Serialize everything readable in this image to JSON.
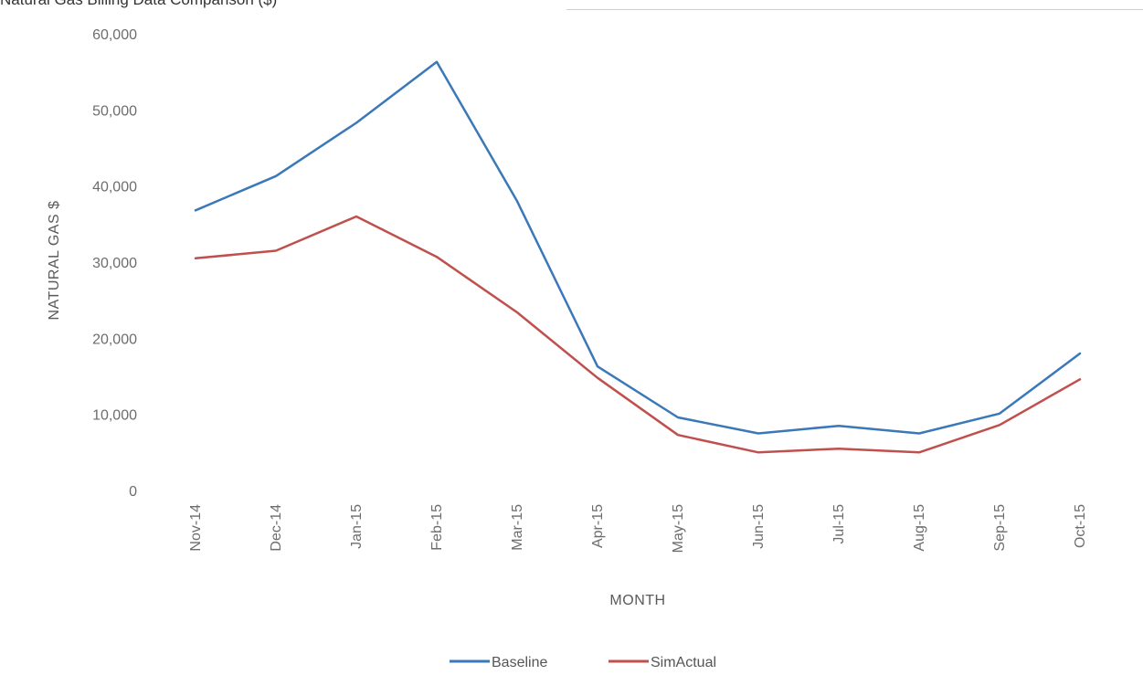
{
  "header": {
    "cut_text": "Natural Gas Billing Data Comparison ($)"
  },
  "chart_data": {
    "type": "line",
    "title": "",
    "xlabel": "MONTH",
    "ylabel": "NATURAL GAS $",
    "categories": [
      "Nov-14",
      "Dec-14",
      "Jan-15",
      "Feb-15",
      "Mar-15",
      "Apr-15",
      "May-15",
      "Jun-15",
      "Jul-15",
      "Aug-15",
      "Sep-15",
      "Oct-15"
    ],
    "ylim": [
      0,
      60000
    ],
    "yticks": [
      0,
      10000,
      20000,
      30000,
      40000,
      50000,
      60000
    ],
    "ytick_labels": [
      "0",
      "10,000",
      "20,000",
      "30,000",
      "40,000",
      "50,000",
      "60,000"
    ],
    "grid": false,
    "legend_position": "bottom",
    "series": [
      {
        "name": "Baseline",
        "color": "#3a78b8",
        "values": [
          36800,
          41300,
          48300,
          56300,
          38000,
          16300,
          9600,
          7500,
          8500,
          7500,
          10100,
          18000
        ]
      },
      {
        "name": "SimActual",
        "color": "#c0504d",
        "values": [
          30500,
          31500,
          36000,
          30700,
          23400,
          14800,
          7300,
          5000,
          5500,
          5000,
          8600,
          14600
        ]
      }
    ]
  }
}
